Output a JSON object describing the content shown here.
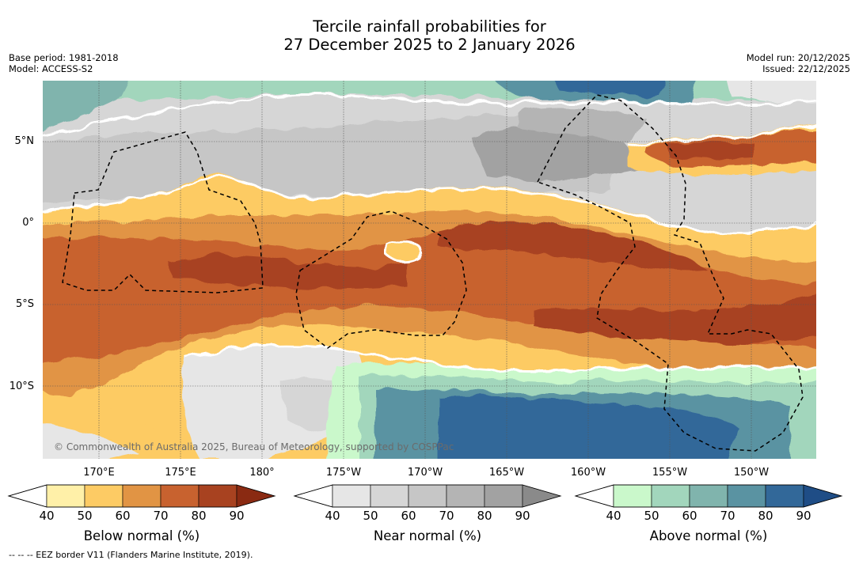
{
  "title": {
    "line1": "Tercile rainfall probabilities for",
    "line2": "27 December 2025 to 2 January 2026"
  },
  "meta": {
    "base_period": "Base period: 1981-2018",
    "model": "Model: ACCESS-S2",
    "model_run": "Model run: 20/12/2025",
    "issued": "Issued: 22/12/2025"
  },
  "map": {
    "lat_labels": [
      "5°N",
      "0°",
      "5°S",
      "10°S"
    ],
    "lon_labels": [
      "170°E",
      "175°E",
      "180°",
      "175°W",
      "170°W",
      "165°W",
      "160°W",
      "155°W",
      "150°W"
    ],
    "copyright": "© Commonwealth of Australia 2025, Bureau of Meteorology, supported by COSPPac"
  },
  "colorbars": {
    "ticks": [
      "40",
      "50",
      "60",
      "70",
      "80",
      "90"
    ],
    "below": {
      "label": "Below normal (%)",
      "colors": [
        "#fff0a8",
        "#fdcb64",
        "#e19444",
        "#c8622f",
        "#a84220",
        "#8a2a12"
      ]
    },
    "near": {
      "label": "Near normal (%)",
      "colors": [
        "#e6e6e6",
        "#d6d6d6",
        "#c6c6c6",
        "#b4b4b4",
        "#a2a2a2",
        "#8a8a8a"
      ]
    },
    "above": {
      "label": "Above normal (%)",
      "colors": [
        "#caf8cb",
        "#a2d6bc",
        "#80b4ad",
        "#5a93a2",
        "#326899",
        "#1f4d86"
      ]
    }
  },
  "legend_note": "--  --  -- EEZ border V11 (Flanders Marine Institute, 2019)."
}
